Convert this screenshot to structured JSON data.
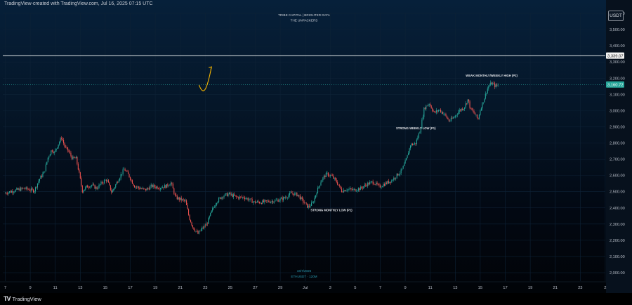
{
  "caption": "TradingView-created with TradingView.com, Jul 16, 2025 07:15 UTC",
  "currency": "USDT",
  "brand": "TradingView",
  "colors": {
    "up": "#26a69a",
    "down": "#ef5350",
    "level_line": "#ffffff",
    "last_price": "#26a69a",
    "projection": "#f5b500",
    "watermark": "#cfd3da"
  },
  "chart_data": {
    "type": "candlestick",
    "watermark": [
      "TRIBE CAPITAL | BRIGHTER DATA",
      "THE UNPACKERS"
    ],
    "footer_date": "16/7/2025",
    "footer_symbol": "ETHUSDT · 120M",
    "ylim": [
      2000,
      3600
    ],
    "y_ticks": [
      2000,
      2100,
      2200,
      2300,
      2400,
      2500,
      2600,
      2700,
      2800,
      2900,
      3000,
      3100,
      3200,
      3300,
      3400,
      3500,
      3600
    ],
    "y_tick_labels": [
      "2,000.00",
      "2,100.00",
      "2,200.00",
      "2,300.00",
      "2,400.00",
      "2,500.00",
      "2,600.00",
      "2,700.00",
      "2,800.00",
      "2,900.00",
      "3,000.00",
      "3,100.00",
      "3,200.00",
      "3,300.00",
      "3,400.00",
      "3,500.00",
      "3,600.00"
    ],
    "x_tick_labels": [
      "7",
      "9",
      "11",
      "13",
      "15",
      "17",
      "19",
      "21",
      "23",
      "25",
      "27",
      "29",
      "Jul",
      "3",
      "5",
      "7",
      "9",
      "11",
      "13",
      "15",
      "17",
      "19",
      "21",
      "23",
      "2"
    ],
    "level_line": {
      "value": 3339.07,
      "label": "3,339.07"
    },
    "last_price": {
      "value": 3160.72,
      "label": "3,160.72"
    },
    "annotations": [
      {
        "text": "WEAK MONTHLY/WEEKLY HIGH (P2)",
        "x": 16.7,
        "y": 3210
      },
      {
        "text": "STRONG WEEKLY LOW (P1)",
        "x": 14.1,
        "y": 2885
      },
      {
        "text": "STRONG MONTHLY LOW (P1)",
        "x": 11.2,
        "y": 2380
      }
    ],
    "projection": [
      [
        15.5,
        3158
      ],
      [
        15.85,
        3090
      ],
      [
        16.1,
        3115
      ],
      [
        16.5,
        3270
      ]
    ],
    "price_path": [
      [
        0,
        2490
      ],
      [
        1.0,
        2510
      ],
      [
        1.6,
        2520
      ],
      [
        2.4,
        2505
      ],
      [
        2.8,
        2575
      ],
      [
        3.2,
        2620
      ],
      [
        3.5,
        2710
      ],
      [
        3.8,
        2760
      ],
      [
        4.0,
        2740
      ],
      [
        4.3,
        2790
      ],
      [
        4.6,
        2835
      ],
      [
        4.85,
        2775
      ],
      [
        5.1,
        2755
      ],
      [
        5.45,
        2705
      ],
      [
        5.75,
        2705
      ],
      [
        6.0,
        2610
      ],
      [
        6.25,
        2505
      ],
      [
        6.6,
        2530
      ],
      [
        7.0,
        2540
      ],
      [
        7.4,
        2520
      ],
      [
        7.8,
        2555
      ],
      [
        8.2,
        2575
      ],
      [
        8.6,
        2495
      ],
      [
        9.2,
        2585
      ],
      [
        9.6,
        2640
      ],
      [
        10.0,
        2595
      ],
      [
        10.4,
        2535
      ],
      [
        10.9,
        2520
      ],
      [
        11.3,
        2510
      ],
      [
        11.8,
        2535
      ],
      [
        12.4,
        2525
      ],
      [
        13.0,
        2535
      ],
      [
        13.35,
        2555
      ],
      [
        13.7,
        2465
      ],
      [
        14.0,
        2455
      ],
      [
        14.5,
        2440
      ],
      [
        14.8,
        2340
      ],
      [
        15.1,
        2280
      ],
      [
        15.5,
        2240
      ],
      [
        15.8,
        2270
      ],
      [
        16.2,
        2300
      ],
      [
        16.6,
        2380
      ],
      [
        17.0,
        2440
      ],
      [
        17.5,
        2475
      ],
      [
        18.0,
        2485
      ],
      [
        18.6,
        2465
      ],
      [
        19.2,
        2465
      ],
      [
        19.6,
        2450
      ],
      [
        20.0,
        2435
      ],
      [
        20.6,
        2435
      ],
      [
        21.2,
        2440
      ],
      [
        21.8,
        2445
      ],
      [
        22.4,
        2460
      ],
      [
        23.0,
        2490
      ],
      [
        23.5,
        2480
      ],
      [
        23.9,
        2440
      ],
      [
        24.3,
        2405
      ],
      [
        24.7,
        2430
      ],
      [
        25.0,
        2500
      ],
      [
        25.4,
        2575
      ],
      [
        25.8,
        2610
      ],
      [
        26.2,
        2595
      ],
      [
        26.6,
        2560
      ],
      [
        27.0,
        2505
      ],
      [
        27.4,
        2515
      ],
      [
        28.0,
        2510
      ],
      [
        28.5,
        2520
      ],
      [
        29.0,
        2545
      ],
      [
        29.5,
        2560
      ],
      [
        30.0,
        2530
      ],
      [
        30.5,
        2550
      ],
      [
        31.0,
        2570
      ],
      [
        31.4,
        2600
      ],
      [
        31.8,
        2630
      ],
      [
        32.2,
        2705
      ],
      [
        32.5,
        2790
      ],
      [
        32.9,
        2795
      ],
      [
        33.3,
        2885
      ],
      [
        33.6,
        3015
      ],
      [
        34.0,
        3045
      ],
      [
        34.4,
        2985
      ],
      [
        34.8,
        3005
      ],
      [
        35.2,
        2980
      ],
      [
        35.6,
        2935
      ],
      [
        36.0,
        2960
      ],
      [
        36.4,
        3000
      ],
      [
        36.8,
        3020
      ],
      [
        37.1,
        3070
      ],
      [
        37.3,
        3010
      ],
      [
        37.6,
        2985
      ],
      [
        37.9,
        2945
      ],
      [
        38.1,
        3010
      ],
      [
        38.4,
        3075
      ],
      [
        38.7,
        3145
      ],
      [
        39.0,
        3170
      ],
      [
        39.3,
        3150
      ],
      [
        39.5,
        3158
      ]
    ]
  }
}
